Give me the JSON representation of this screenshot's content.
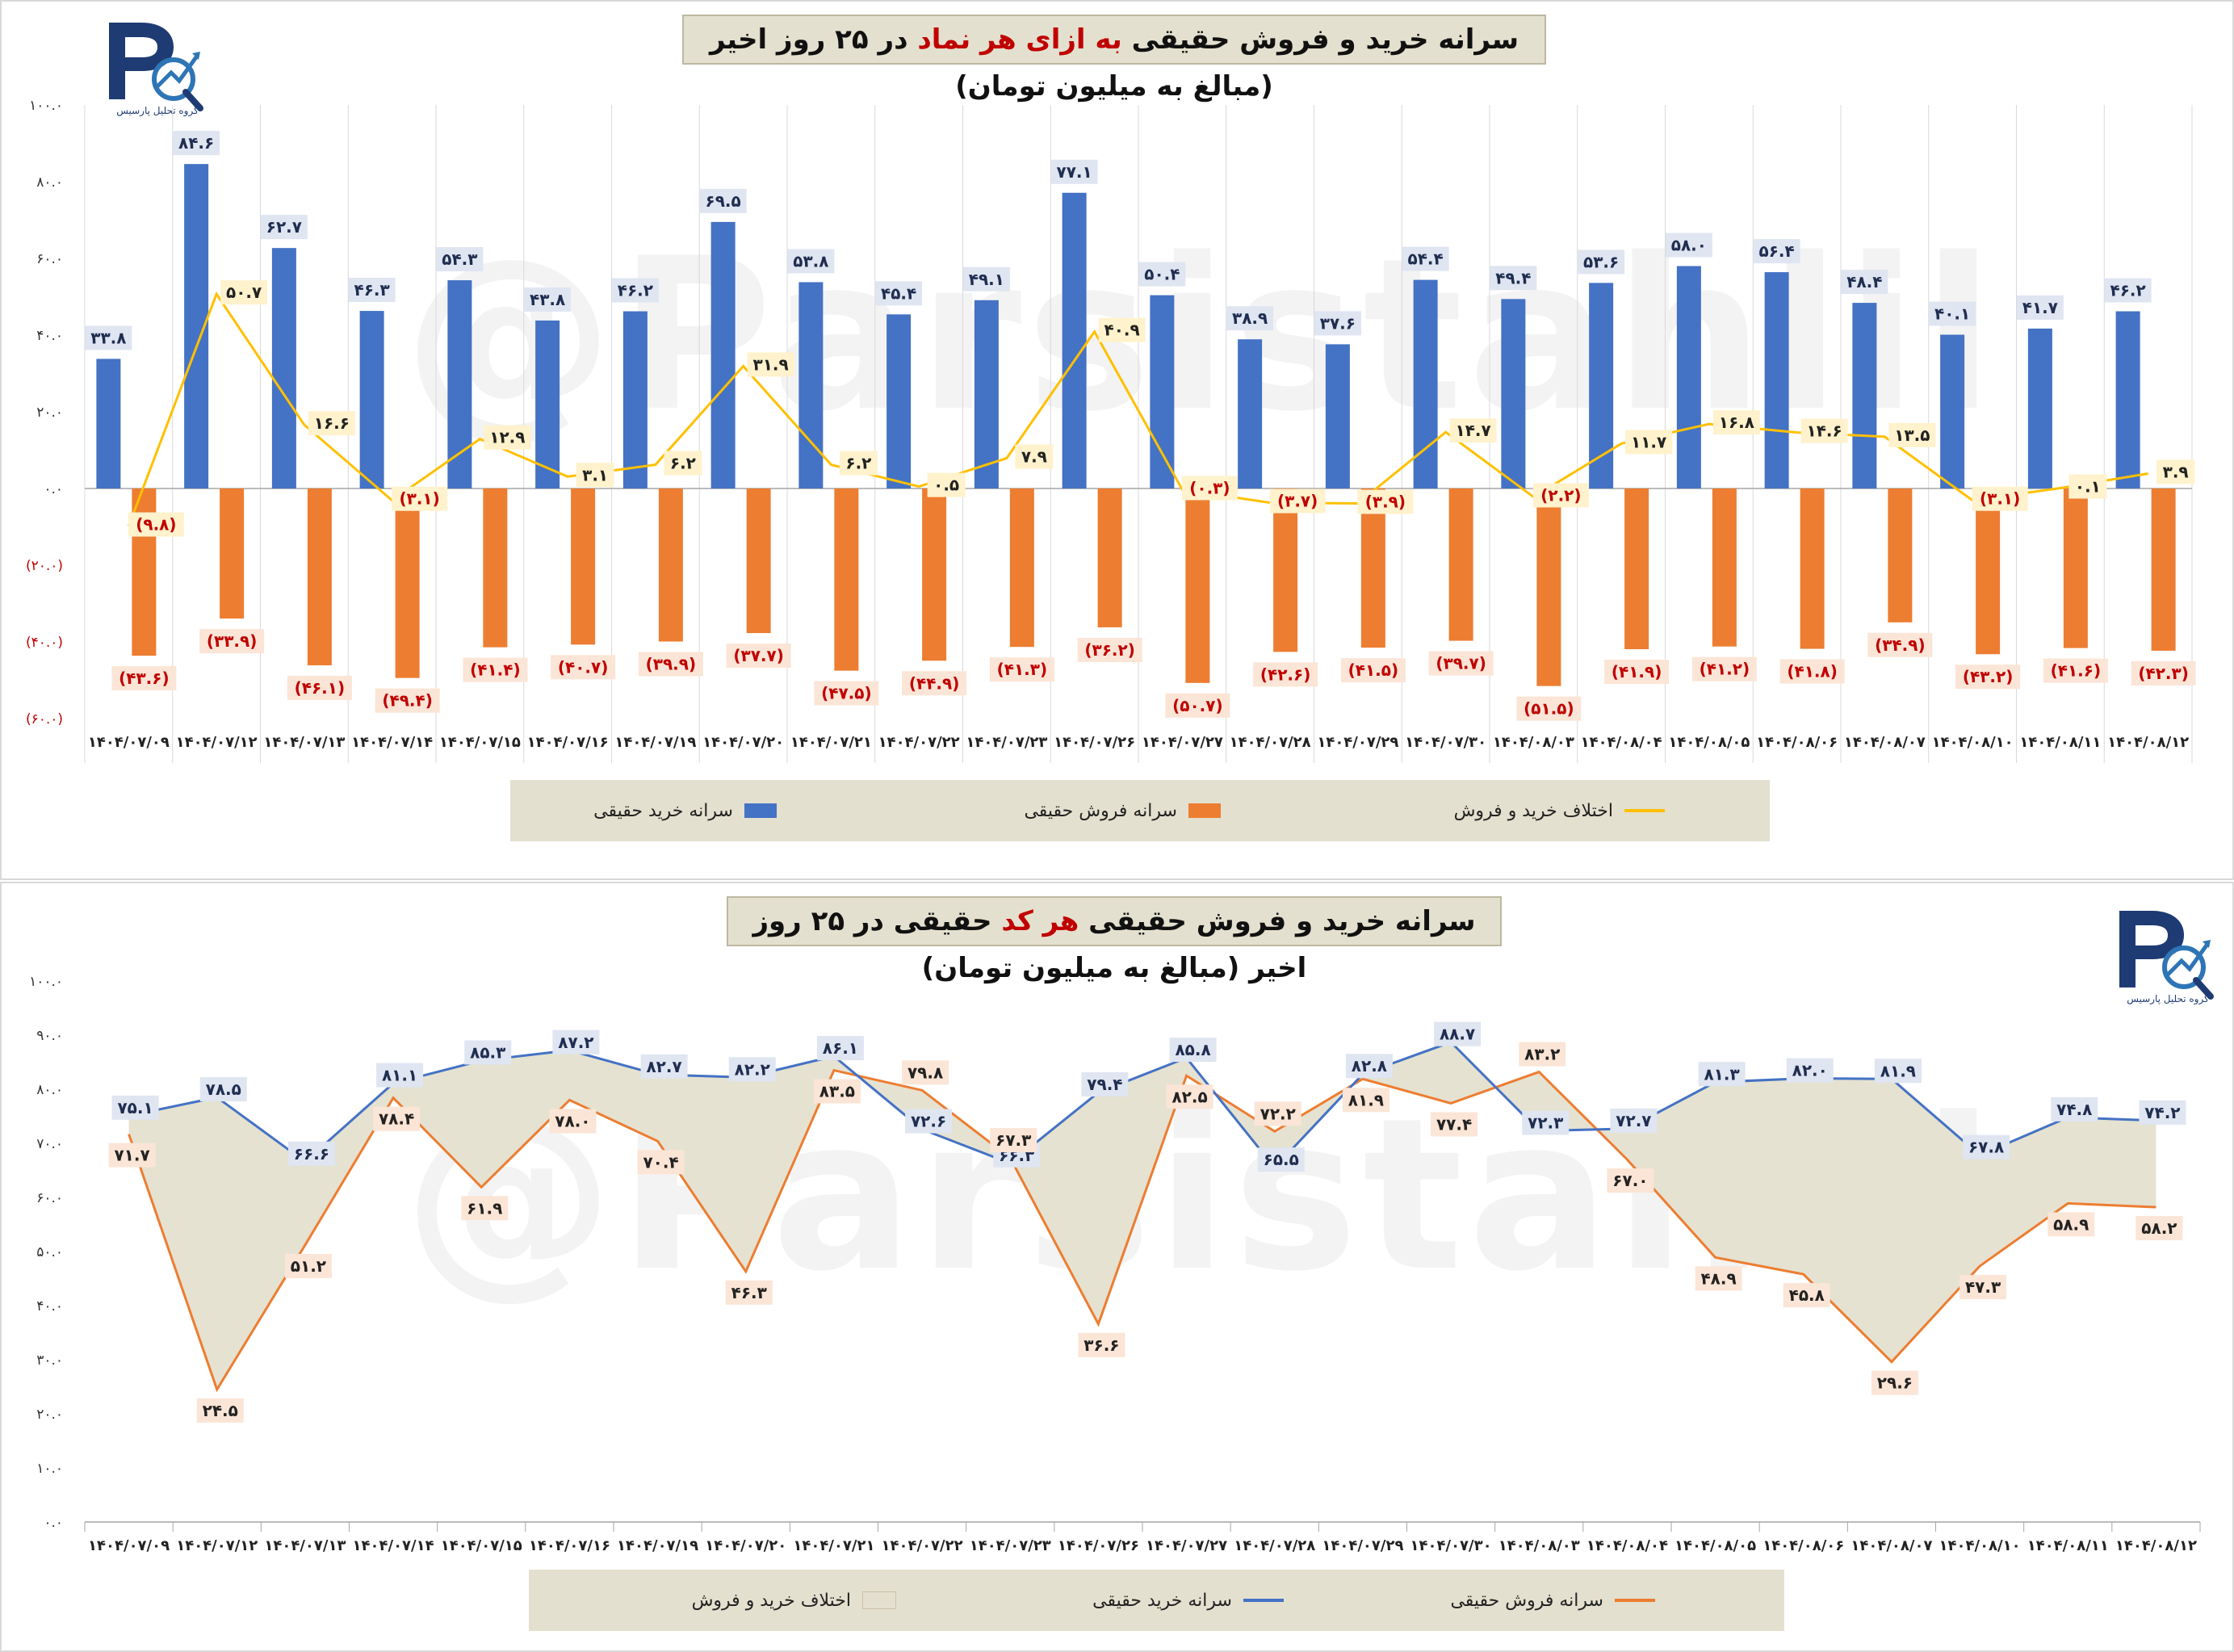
{
  "watermark": "@Parsistahlil",
  "logo": {
    "subtitle": "گروه تحلیل پارسیس"
  },
  "colors": {
    "buy": "#4472c4",
    "sell": "#ed7d31",
    "diff": "#ffc000",
    "area": "#e4e0cf",
    "buy_label_bg": "#dfe5f1",
    "sell_label_bg": "#fbe5d6",
    "diff_label_bg": "#fff2cc",
    "neg_text": "#c00000",
    "title_highlight": "#c00000"
  },
  "dates": [
    "۱۴۰۴/۰۷/۰۹",
    "۱۴۰۴/۰۷/۱۲",
    "۱۴۰۴/۰۷/۱۳",
    "۱۴۰۴/۰۷/۱۴",
    "۱۴۰۴/۰۷/۱۵",
    "۱۴۰۴/۰۷/۱۶",
    "۱۴۰۴/۰۷/۱۹",
    "۱۴۰۴/۰۷/۲۰",
    "۱۴۰۴/۰۷/۲۱",
    "۱۴۰۴/۰۷/۲۲",
    "۱۴۰۴/۰۷/۲۳",
    "۱۴۰۴/۰۷/۲۶",
    "۱۴۰۴/۰۷/۲۷",
    "۱۴۰۴/۰۷/۲۸",
    "۱۴۰۴/۰۷/۲۹",
    "۱۴۰۴/۰۷/۳۰",
    "۱۴۰۴/۰۸/۰۳",
    "۱۴۰۴/۰۸/۰۴",
    "۱۴۰۴/۰۸/۰۵",
    "۱۴۰۴/۰۸/۰۶",
    "۱۴۰۴/۰۸/۰۷",
    "۱۴۰۴/۰۸/۱۰",
    "۱۴۰۴/۰۸/۱۱",
    "۱۴۰۴/۰۸/۱۲"
  ],
  "chart_data": [
    {
      "type": "bar",
      "title_parts": [
        "سرانه خرید و فروش حقیقی ",
        "به ازای هر نماد",
        " در ۲۵ روز اخیر (مبالغ به میلیون تومان)"
      ],
      "categories": [
        "۱۴۰۴/۰۷/۰۹",
        "۱۴۰۴/۰۷/۱۲",
        "۱۴۰۴/۰۷/۱۳",
        "۱۴۰۴/۰۷/۱۴",
        "۱۴۰۴/۰۷/۱۵",
        "۱۴۰۴/۰۷/۱۶",
        "۱۴۰۴/۰۷/۱۹",
        "۱۴۰۴/۰۷/۲۰",
        "۱۴۰۴/۰۷/۲۱",
        "۱۴۰۴/۰۷/۲۲",
        "۱۴۰۴/۰۷/۲۳",
        "۱۴۰۴/۰۷/۲۶",
        "۱۴۰۴/۰۷/۲۷",
        "۱۴۰۴/۰۷/۲۸",
        "۱۴۰۴/۰۷/۲۹",
        "۱۴۰۴/۰۷/۳۰",
        "۱۴۰۴/۰۸/۰۳",
        "۱۴۰۴/۰۸/۰۴",
        "۱۴۰۴/۰۸/۰۵",
        "۱۴۰۴/۰۸/۰۶",
        "۱۴۰۴/۰۸/۰۷",
        "۱۴۰۴/۰۸/۱۰",
        "۱۴۰۴/۰۸/۱۱",
        "۱۴۰۴/۰۸/۱۲"
      ],
      "ylim": [
        -60,
        100
      ],
      "yticks": [
        100,
        80,
        60,
        40,
        20,
        0,
        -20,
        -40,
        -60
      ],
      "ytick_labels": [
        "۱۰۰.۰",
        "۸۰.۰",
        "۶۰.۰",
        "۴۰.۰",
        "۲۰.۰",
        "۰.۰",
        "(۲۰.۰)",
        "(۴۰.۰)",
        "(۶۰.۰)"
      ],
      "legend_position": "bottom",
      "grid": false,
      "series": [
        {
          "name": "سرانه خرید حقیقی",
          "kind": "bar",
          "values": [
            33.8,
            84.6,
            62.7,
            46.3,
            54.3,
            43.8,
            46.2,
            69.5,
            53.8,
            45.4,
            49.1,
            77.1,
            50.4,
            38.9,
            37.6,
            54.4,
            49.4,
            53.6,
            58.0,
            56.4,
            48.4,
            40.1,
            41.7,
            46.2
          ],
          "labels": [
            "۳۳.۸",
            "۸۴.۶",
            "۶۲.۷",
            "۴۶.۳",
            "۵۴.۳",
            "۴۳.۸",
            "۴۶.۲",
            "۶۹.۵",
            "۵۳.۸",
            "۴۵.۴",
            "۴۹.۱",
            "۷۷.۱",
            "۵۰.۴",
            "۳۸.۹",
            "۳۷.۶",
            "۵۴.۴",
            "۴۹.۴",
            "۵۳.۶",
            "۵۸.۰",
            "۵۶.۴",
            "۴۸.۴",
            "۴۰.۱",
            "۴۱.۷",
            "۴۶.۲"
          ]
        },
        {
          "name": "سرانه فروش حقیقی",
          "kind": "bar",
          "values": [
            -43.6,
            -33.9,
            -46.1,
            -49.4,
            -41.4,
            -40.7,
            -39.9,
            -37.7,
            -47.5,
            -44.9,
            -41.3,
            -36.2,
            -50.7,
            -42.6,
            -41.5,
            -39.7,
            -51.5,
            -41.9,
            -41.2,
            -41.8,
            -34.9,
            -43.2,
            -41.6,
            -42.3
          ],
          "labels": [
            "(۴۳.۶)",
            "(۳۳.۹)",
            "(۴۶.۱)",
            "(۴۹.۴)",
            "(۴۱.۴)",
            "(۴۰.۷)",
            "(۳۹.۹)",
            "(۳۷.۷)",
            "(۴۷.۵)",
            "(۴۴.۹)",
            "(۴۱.۳)",
            "(۳۶.۲)",
            "(۵۰.۷)",
            "(۴۲.۶)",
            "(۴۱.۵)",
            "(۳۹.۷)",
            "(۵۱.۵)",
            "(۴۱.۹)",
            "(۴۱.۲)",
            "(۴۱.۸)",
            "(۳۴.۹)",
            "(۴۳.۲)",
            "(۴۱.۶)",
            "(۴۲.۳)"
          ]
        },
        {
          "name": "اختلاف خرید و فروش",
          "kind": "line",
          "values": [
            -9.8,
            50.7,
            16.6,
            -3.1,
            12.9,
            3.1,
            6.2,
            31.9,
            6.2,
            0.5,
            7.9,
            40.9,
            -0.3,
            -3.7,
            -3.9,
            14.7,
            -2.2,
            11.7,
            16.8,
            14.6,
            13.5,
            -3.1,
            0.1,
            3.9
          ],
          "labels": [
            "(۹.۸)",
            "۵۰.۷",
            "۱۶.۶",
            "(۳.۱)",
            "۱۲.۹",
            "۳.۱",
            "۶.۲",
            "۳۱.۹",
            "۶.۲",
            "۰.۵",
            "۷.۹",
            "۴۰.۹",
            "(۰.۳)",
            "(۳.۷)",
            "(۳.۹)",
            "۱۴.۷",
            "(۲.۲)",
            "۱۱.۷",
            "۱۶.۸",
            "۱۴.۶",
            "۱۳.۵",
            "(۳.۱)",
            "۰.۱",
            "۳.۹"
          ]
        }
      ]
    },
    {
      "type": "area",
      "title_parts": [
        "سرانه خرید و فروش حقیقی ",
        "هر کد",
        " حقیقی در ۲۵ روز اخیر (مبالغ به میلیون تومان)"
      ],
      "categories": [
        "۱۴۰۴/۰۷/۰۹",
        "۱۴۰۴/۰۷/۱۲",
        "۱۴۰۴/۰۷/۱۳",
        "۱۴۰۴/۰۷/۱۴",
        "۱۴۰۴/۰۷/۱۵",
        "۱۴۰۴/۰۷/۱۶",
        "۱۴۰۴/۰۷/۱۹",
        "۱۴۰۴/۰۷/۲۰",
        "۱۴۰۴/۰۷/۲۱",
        "۱۴۰۴/۰۷/۲۲",
        "۱۴۰۴/۰۷/۲۳",
        "۱۴۰۴/۰۷/۲۶",
        "۱۴۰۴/۰۷/۲۷",
        "۱۴۰۴/۰۷/۲۸",
        "۱۴۰۴/۰۷/۲۹",
        "۱۴۰۴/۰۷/۳۰",
        "۱۴۰۴/۰۸/۰۳",
        "۱۴۰۴/۰۸/۰۴",
        "۱۴۰۴/۰۸/۰۵",
        "۱۴۰۴/۰۸/۰۶",
        "۱۴۰۴/۰۸/۰۷",
        "۱۴۰۴/۰۸/۱۰",
        "۱۴۰۴/۰۸/۱۱",
        "۱۴۰۴/۰۸/۱۲"
      ],
      "ylim": [
        0,
        100
      ],
      "yticks": [
        100,
        90,
        80,
        70,
        60,
        50,
        40,
        30,
        20,
        10,
        0
      ],
      "ytick_labels": [
        "۱۰۰.۰",
        "۹۰.۰",
        "۸۰.۰",
        "۷۰.۰",
        "۶۰.۰",
        "۵۰.۰",
        "۴۰.۰",
        "۳۰.۰",
        "۲۰.۰",
        "۱۰.۰",
        "۰.۰"
      ],
      "legend_position": "bottom",
      "grid": false,
      "series": [
        {
          "name": "سرانه خرید حقیقی",
          "kind": "line",
          "values": [
            75.1,
            78.5,
            66.6,
            81.1,
            85.3,
            87.2,
            82.7,
            82.2,
            86.1,
            72.6,
            66.3,
            79.4,
            85.8,
            65.5,
            82.8,
            88.7,
            72.3,
            72.7,
            81.3,
            82.0,
            81.9,
            67.8,
            74.8,
            74.2
          ],
          "labels": [
            "۷۵.۱",
            "۷۸.۵",
            "۶۶.۶",
            "۸۱.۱",
            "۸۵.۳",
            "۸۷.۲",
            "۸۲.۷",
            "۸۲.۲",
            "۸۶.۱",
            "۷۲.۶",
            "۶۶.۳",
            "۷۹.۴",
            "۸۵.۸",
            "۶۵.۵",
            "۸۲.۸",
            "۸۸.۷",
            "۷۲.۳",
            "۷۲.۷",
            "۸۱.۳",
            "۸۲.۰",
            "۸۱.۹",
            "۶۷.۸",
            "۷۴.۸",
            "۷۴.۲"
          ]
        },
        {
          "name": "سرانه فروش حقیقی",
          "kind": "line",
          "values": [
            71.7,
            24.5,
            51.2,
            78.4,
            61.9,
            78.0,
            70.4,
            46.3,
            83.5,
            79.8,
            67.3,
            36.6,
            82.5,
            72.2,
            81.9,
            77.4,
            83.2,
            67.0,
            48.9,
            45.8,
            29.6,
            47.3,
            58.9,
            58.2
          ],
          "labels": [
            "۷۱.۷",
            "۲۴.۵",
            "۵۱.۲",
            "۷۸.۴",
            "۶۱.۹",
            "۷۸.۰",
            "۷۰.۴",
            "۴۶.۳",
            "۸۳.۵",
            "۷۹.۸",
            "۶۷.۳",
            "۳۶.۶",
            "۸۲.۵",
            "۷۲.۲",
            "۸۱.۹",
            "۷۷.۴",
            "۸۳.۲",
            "۶۷.۰",
            "۴۸.۹",
            "۴۵.۸",
            "۲۹.۶",
            "۴۷.۳",
            "۵۸.۹",
            "۵۸.۲"
          ]
        }
      ],
      "area_series_name": "اختلاف خرید و فروش"
    }
  ]
}
